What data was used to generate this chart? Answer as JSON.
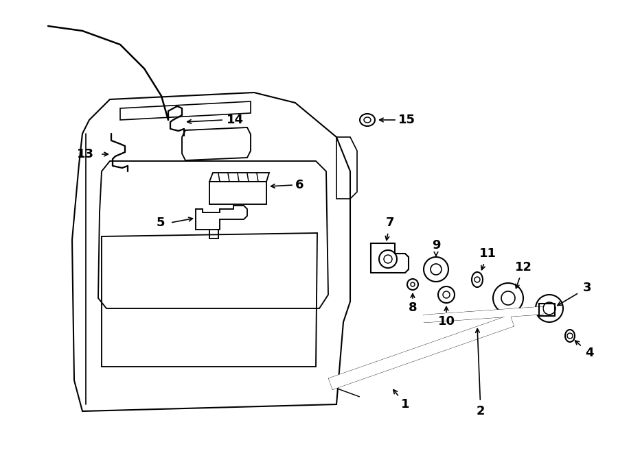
{
  "bg_color": "#ffffff",
  "line_color": "#000000",
  "line_width": 1.5,
  "fig_width": 9.0,
  "fig_height": 6.61,
  "dpi": 100
}
